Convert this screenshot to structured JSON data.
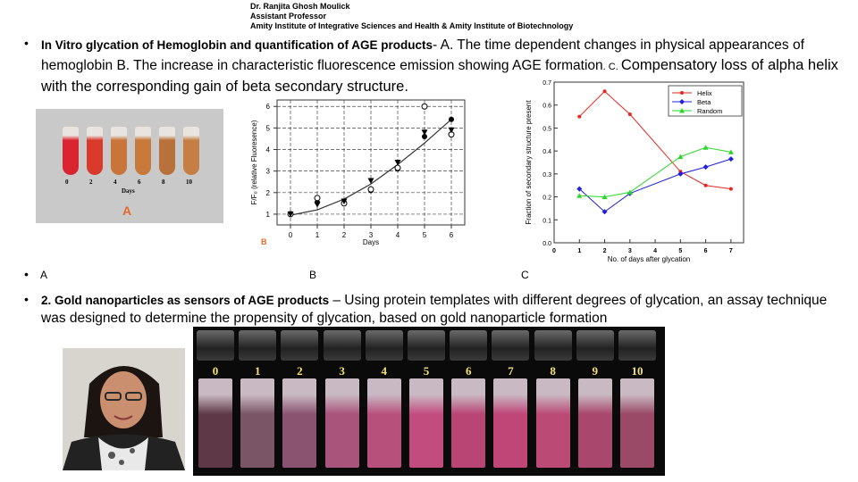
{
  "header": {
    "line1": "Dr. Ranjita Ghosh Moulick",
    "line2": "Assistant Professor",
    "line3": "Amity Institute of Integrative Sciences and Health & Amity Institute of Biotechnology"
  },
  "section1": {
    "bold": "In Vitro glycation of Hemoglobin and quantification of AGE products",
    "text_a": "- A. The time dependent changes in physical appearances of hemoglobin B. The increase in characteristic fluorescence emission showing AGE formation",
    "text_b": ". C. ",
    "text_c": "Compensatory loss of alpha helix with the corresponding gain of beta secondary structure.",
    "labels": {
      "a": "A",
      "b": "B",
      "c": "C"
    }
  },
  "figA": {
    "tick_labels": [
      "0",
      "2",
      "4",
      "6",
      "8",
      "10"
    ],
    "xlabel": "Days",
    "panel_label": "A",
    "tube_colors": [
      "#d9252f",
      "#d93a2b",
      "#c9753a",
      "#c77a3c",
      "#b8713a",
      "#c77e45"
    ]
  },
  "section2": {
    "bold": "2. Gold nanoparticles as sensors of AGE products",
    "text": " – Using protein templates with different degrees of glycation, an assay technique was designed to determine the propensity of glycation, based on gold nanoparticle formation"
  },
  "figGold": {
    "vial_numbers": [
      "0",
      "1",
      "2",
      "3",
      "4",
      "5",
      "6",
      "7",
      "8",
      "9",
      "10"
    ],
    "vial_colors": [
      "#5e3846",
      "#7a5566",
      "#8a5470",
      "#a9547a",
      "#b8507c",
      "#c34c7f",
      "#b94575",
      "#c04678",
      "#bb4a75",
      "#a9476c",
      "#9a4a66"
    ]
  },
  "chart_data": [
    {
      "type": "scatter",
      "title": "",
      "panel_label": "B",
      "xlabel": "Days",
      "ylabel": "F/F₀ (relative Fluoresence)",
      "xlim": [
        -0.5,
        6.5
      ],
      "ylim": [
        0.5,
        6.3
      ],
      "xticks": [
        "0",
        "1",
        "2",
        "3",
        "4",
        "5",
        "6"
      ],
      "yticks": [
        "1",
        "2",
        "3",
        "4",
        "5",
        "6"
      ],
      "grid": true,
      "series": [
        {
          "marker": "filled-circle",
          "x": [
            0,
            1,
            2,
            3,
            4,
            5,
            6
          ],
          "y": [
            1.0,
            1.55,
            1.55,
            2.1,
            3.1,
            4.6,
            5.4
          ]
        },
        {
          "marker": "open-circle",
          "x": [
            0,
            1,
            2,
            3,
            4,
            5,
            6
          ],
          "y": [
            1.0,
            1.75,
            1.5,
            2.15,
            3.15,
            6.0,
            4.7
          ]
        },
        {
          "marker": "triangle-down",
          "x": [
            0,
            1,
            2,
            3,
            4,
            5,
            6
          ],
          "y": [
            1.0,
            1.45,
            1.6,
            2.55,
            3.4,
            4.8,
            4.9
          ]
        }
      ],
      "fit": {
        "x": [
          0,
          1,
          2,
          3,
          4,
          5,
          6
        ],
        "y": [
          0.95,
          1.2,
          1.7,
          2.4,
          3.3,
          4.3,
          5.4
        ]
      }
    },
    {
      "type": "line",
      "title": "",
      "xlabel": "No. of days after glycation",
      "ylabel": "Fraction of secondary structure present",
      "xlim": [
        0,
        7.5
      ],
      "ylim": [
        0,
        0.7
      ],
      "xticks": [
        "0",
        "1",
        "2",
        "3",
        "4",
        "5",
        "6",
        "7"
      ],
      "yticks": [
        "0.0",
        "0.1",
        "0.2",
        "0.3",
        "0.4",
        "0.5",
        "0.6",
        "0.7"
      ],
      "legend": "top-right",
      "x": [
        1,
        2,
        3,
        5,
        6,
        7
      ],
      "series": [
        {
          "name": "Helix",
          "color": "#e8251e",
          "marker": "circle",
          "values": [
            0.55,
            0.66,
            0.56,
            0.31,
            0.25,
            0.235
          ]
        },
        {
          "name": "Beta",
          "color": "#1f1fe0",
          "marker": "diamond",
          "values": [
            0.235,
            0.135,
            0.215,
            0.3,
            0.33,
            0.365
          ]
        },
        {
          "name": "Random",
          "color": "#2bd62b",
          "marker": "triangle-up",
          "values": [
            0.205,
            0.2,
            0.22,
            0.375,
            0.415,
            0.395
          ]
        }
      ]
    }
  ]
}
